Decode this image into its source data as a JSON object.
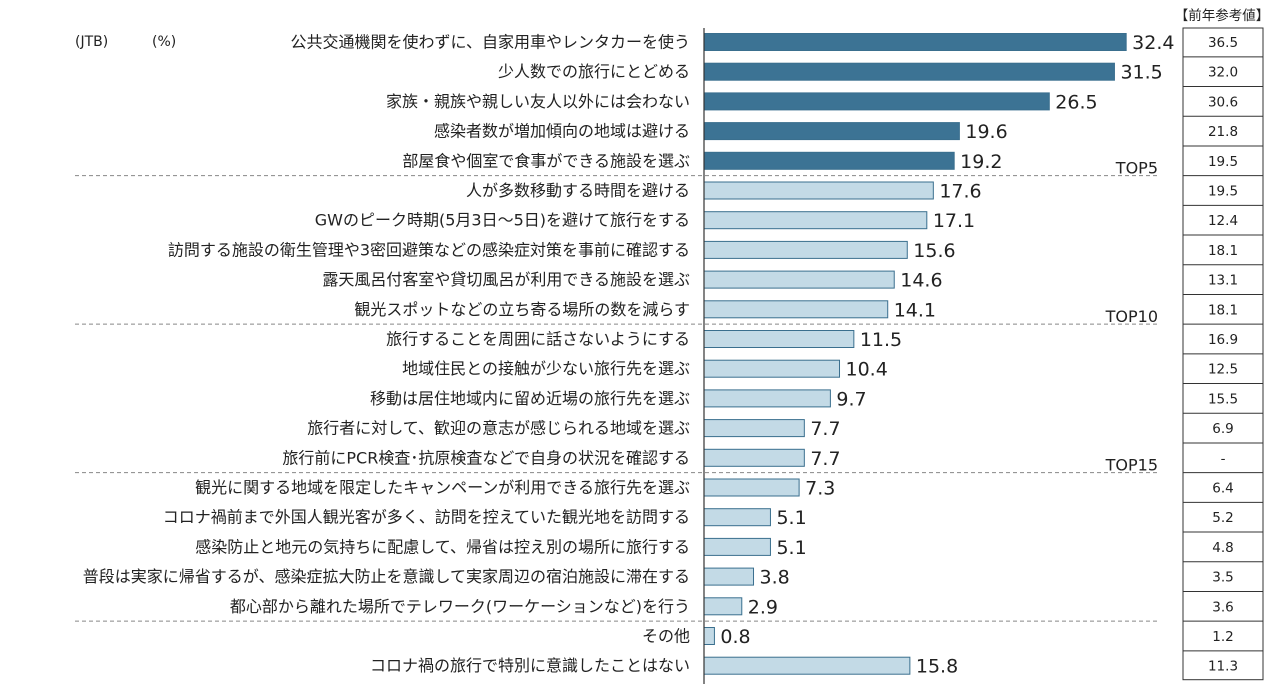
{
  "chart_data": {
    "type": "bar",
    "orientation": "horizontal",
    "source_label": "(JTB)",
    "unit_label": "(%)",
    "prev_header": "【前年参考値】",
    "categories": [
      "公共交通機関を使わずに、自家用車やレンタカーを使う",
      "少人数での旅行にとどめる",
      "家族・親族や親しい友人以外には会わない",
      "感染者数が増加傾向の地域は避ける",
      "部屋食や個室で食事ができる施設を選ぶ",
      "人が多数移動する時間を避ける",
      "GWのピーク時期(5月3日～5日)を避けて旅行をする",
      "訪問する施設の衛生管理や3密回避策などの感染症対策を事前に確認する",
      "露天風呂付客室や貸切風呂が利用できる施設を選ぶ",
      "観光スポットなどの立ち寄る場所の数を減らす",
      "旅行することを周囲に話さないようにする",
      "地域住民との接触が少ない旅行先を選ぶ",
      "移動は居住地域内に留め近場の旅行先を選ぶ",
      "旅行者に対して、歓迎の意志が感じられる地域を選ぶ",
      "旅行前にPCR検査･抗原検査などで自身の状況を確認する",
      "観光に関する地域を限定したキャンペーンが利用できる旅行先を選ぶ",
      "コロナ禍前まで外国人観光客が多く、訪問を控えていた観光地を訪問する",
      "感染防止と地元の気持ちに配慮して、帰省は控え別の場所に旅行する",
      "普段は実家に帰省するが、感染症拡大防止を意識して実家周辺の宿泊施設に滞在する",
      "都心部から離れた場所でテレワーク(ワーケーションなど)を行う",
      "その他",
      "コロナ禍の旅行で特別に意識したことはない"
    ],
    "values": [
      32.4,
      31.5,
      26.5,
      19.6,
      19.2,
      17.6,
      17.1,
      15.6,
      14.6,
      14.1,
      11.5,
      10.4,
      9.7,
      7.7,
      7.7,
      7.3,
      5.1,
      5.1,
      3.8,
      2.9,
      0.8,
      15.8
    ],
    "value_labels": [
      "32.4",
      "31.5",
      "26.5",
      "19.6",
      "19.2",
      "17.6",
      "17.1",
      "15.6",
      "14.6",
      "14.1",
      "11.5",
      "10.4",
      "9.7",
      "7.7",
      "7.7",
      "7.3",
      "5.1",
      "5.1",
      "3.8",
      "2.9",
      "0.8",
      "15.8"
    ],
    "prev_values": [
      "36.5",
      "32.0",
      "30.6",
      "21.8",
      "19.5",
      "19.5",
      "12.4",
      "18.1",
      "13.1",
      "18.1",
      "16.9",
      "12.5",
      "15.5",
      "6.9",
      "-",
      "6.4",
      "5.2",
      "4.8",
      "3.5",
      "3.6",
      "1.2",
      "11.3"
    ],
    "group_markers": [
      {
        "after_index": 4,
        "label": "TOP5"
      },
      {
        "after_index": 9,
        "label": "TOP10"
      },
      {
        "after_index": 14,
        "label": "TOP15"
      },
      {
        "after_index": 19,
        "label": ""
      }
    ],
    "highlight_count": 5,
    "colors": {
      "top": "#3c7394",
      "rest": "#c3dae6",
      "bar_border": "#3a6f8e",
      "axis": "#333333",
      "divider": "#888888"
    }
  }
}
